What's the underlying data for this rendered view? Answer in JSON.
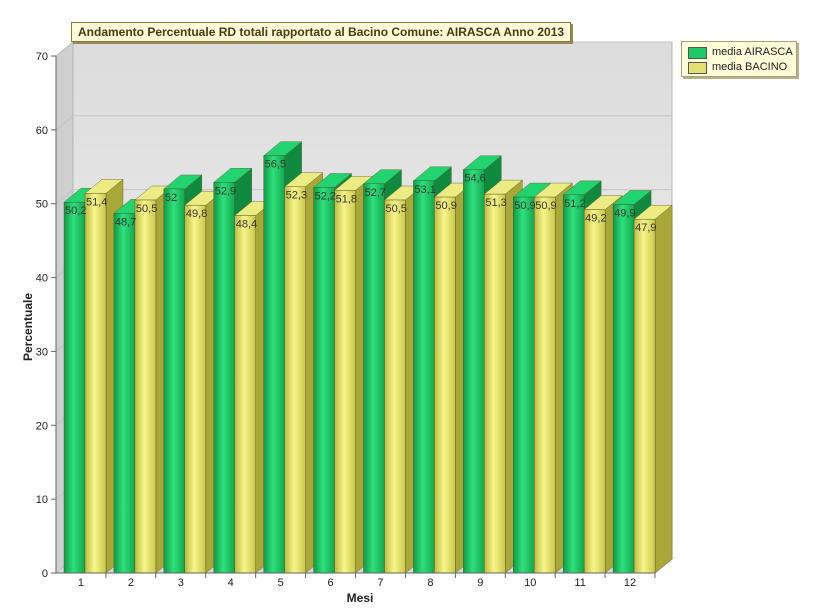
{
  "chart_data": {
    "type": "bar",
    "title": "Andamento Percentuale RD totali rapportato al Bacino Comune: AIRASCA Anno 2013",
    "xlabel": "Mesi",
    "ylabel": "Percentuale",
    "categories": [
      "1",
      "2",
      "3",
      "4",
      "5",
      "6",
      "7",
      "8",
      "9",
      "10",
      "11",
      "12"
    ],
    "series": [
      {
        "name": "media AIRASCA",
        "values": [
          50.2,
          48.7,
          52,
          52.9,
          56.5,
          52.2,
          52.7,
          53.1,
          54.6,
          50.9,
          51.2,
          49.9
        ],
        "labels": [
          "50,2",
          "48,7",
          "52",
          "52,9",
          "56,5",
          "52,2",
          "52,7",
          "53,1",
          "54,6",
          "50,9",
          "51,2",
          "49,9"
        ],
        "color": "#1ec96a"
      },
      {
        "name": "media BACINO",
        "values": [
          51.4,
          50.5,
          49.8,
          48.4,
          52.3,
          51.8,
          50.5,
          50.9,
          51.3,
          50.9,
          49.2,
          47.9
        ],
        "labels": [
          "51,4",
          "50,5",
          "49,8",
          "48,4",
          "52,3",
          "51,8",
          "50,5",
          "50,9",
          "51,3",
          "50,9",
          "49,2",
          "47,9"
        ],
        "color": "#e2e070"
      }
    ],
    "yticks": [
      "0",
      "10",
      "20",
      "30",
      "40",
      "50",
      "60",
      "70"
    ],
    "ylim": [
      0,
      70
    ],
    "grid": true,
    "legend": "top-right"
  }
}
